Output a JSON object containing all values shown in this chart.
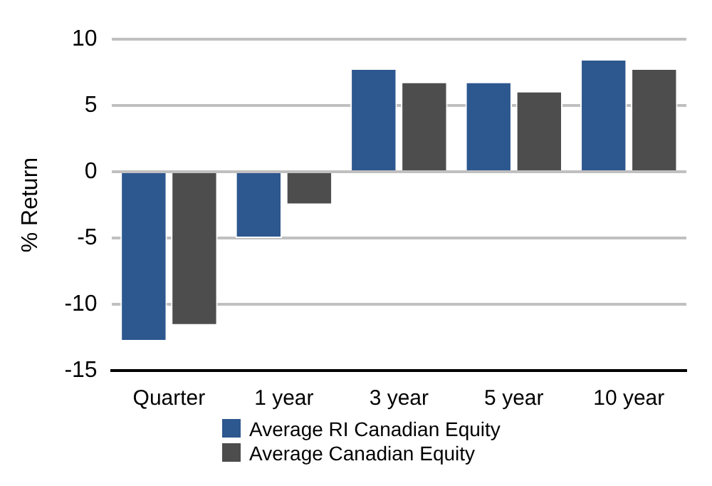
{
  "chart_data": {
    "type": "bar",
    "ylabel": "% Return",
    "categories": [
      "Quarter",
      "1 year",
      "3 year",
      "5 year",
      "10 year"
    ],
    "series": [
      {
        "name": "Average RI Canadian Equity",
        "color": "#2d578f",
        "values": [
          -12.8,
          -5.0,
          7.8,
          6.8,
          8.5
        ]
      },
      {
        "name": "Average Canadian Equity",
        "color": "#4d4d4d",
        "values": [
          -11.6,
          -2.5,
          6.8,
          6.1,
          7.8
        ]
      }
    ],
    "ylim": [
      -15,
      10
    ],
    "yticks": [
      -15,
      -10,
      -5,
      0,
      5,
      10
    ],
    "grid": "y",
    "legend": "bottom"
  }
}
